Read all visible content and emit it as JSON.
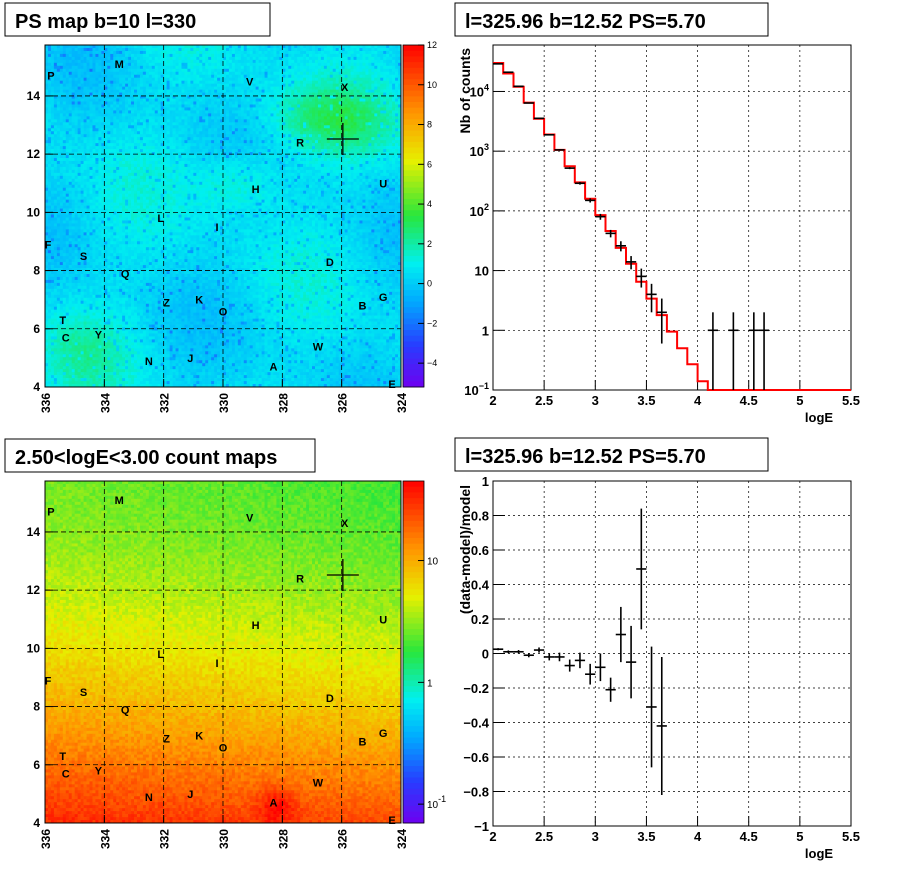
{
  "chart_data": [
    {
      "type": "heatmap",
      "title": "PS map b=10 l=330",
      "x_ticks": [
        "336",
        "334",
        "332",
        "330",
        "328",
        "326",
        "324"
      ],
      "xlim": [
        336,
        324
      ],
      "y_ticks": [
        "4",
        "6",
        "8",
        "10",
        "12",
        "14"
      ],
      "ylim": [
        4,
        15.75
      ],
      "colorbar": {
        "scale": "linear",
        "range": [
          -5.2,
          12
        ],
        "ticks": [
          "12",
          "10",
          "8",
          "6",
          "4",
          "2",
          "0",
          "−2",
          "−4"
        ],
        "tick_values": [
          12,
          10,
          8,
          6,
          4,
          2,
          0,
          -2,
          -4
        ]
      },
      "crosshair": {
        "l": 325.96,
        "b": 12.52
      },
      "source_labels": [
        {
          "label": "M",
          "l": 333.5,
          "b": 15.1
        },
        {
          "label": "P",
          "l": 335.8,
          "b": 14.7
        },
        {
          "label": "V",
          "l": 329.1,
          "b": 14.5
        },
        {
          "label": "X",
          "l": 325.9,
          "b": 14.3
        },
        {
          "label": "R",
          "l": 327.4,
          "b": 12.4
        },
        {
          "label": "H",
          "l": 328.9,
          "b": 10.8
        },
        {
          "label": "U",
          "l": 324.6,
          "b": 11.0
        },
        {
          "label": "L",
          "l": 332.1,
          "b": 9.8
        },
        {
          "label": "I",
          "l": 330.2,
          "b": 9.5
        },
        {
          "label": "F",
          "l": 335.9,
          "b": 8.9
        },
        {
          "label": "S",
          "l": 334.7,
          "b": 8.5
        },
        {
          "label": "D",
          "l": 326.4,
          "b": 8.3
        },
        {
          "label": "Q",
          "l": 333.3,
          "b": 7.9
        },
        {
          "label": "K",
          "l": 330.8,
          "b": 7.0
        },
        {
          "label": "Z",
          "l": 331.9,
          "b": 6.9
        },
        {
          "label": "O",
          "l": 330.0,
          "b": 6.6
        },
        {
          "label": "B",
          "l": 325.3,
          "b": 6.8
        },
        {
          "label": "G",
          "l": 324.6,
          "b": 7.1
        },
        {
          "label": "T",
          "l": 335.4,
          "b": 6.3
        },
        {
          "label": "C",
          "l": 335.3,
          "b": 5.7
        },
        {
          "label": "Y",
          "l": 334.2,
          "b": 5.8
        },
        {
          "label": "W",
          "l": 326.8,
          "b": 5.4
        },
        {
          "label": "N",
          "l": 332.5,
          "b": 4.9
        },
        {
          "label": "J",
          "l": 331.1,
          "b": 5.0
        },
        {
          "label": "A",
          "l": 328.3,
          "b": 4.7
        },
        {
          "label": "E",
          "l": 324.3,
          "b": 4.1
        }
      ]
    },
    {
      "type": "line",
      "title": "l=325.96 b=12.52 PS=5.70",
      "xlabel": "logE",
      "ylabel": "Nb of counts",
      "xlim": [
        2,
        5.5
      ],
      "ylim": [
        0.1,
        60000
      ],
      "yscale": "log",
      "x_ticks": [
        "2",
        "2.5",
        "3",
        "3.5",
        "4",
        "4.5",
        "5",
        "5.5"
      ],
      "y_ticks": [
        {
          "v": 0.1,
          "base": "10",
          "exp": "−1"
        },
        {
          "v": 1,
          "base": "1",
          "exp": ""
        },
        {
          "v": 10,
          "base": "10",
          "exp": ""
        },
        {
          "v": 100,
          "base": "10",
          "exp": "2"
        },
        {
          "v": 1000,
          "base": "10",
          "exp": "3"
        },
        {
          "v": 10000,
          "base": "10",
          "exp": "4"
        }
      ],
      "grid": true,
      "series": [
        {
          "kind": "model-histogram",
          "color": "#ff0000",
          "edges": [
            2.0,
            2.1,
            2.2,
            2.3,
            2.4,
            2.5,
            2.6,
            2.7,
            2.8,
            2.9,
            3.0,
            3.1,
            3.2,
            3.3,
            3.4,
            3.5,
            3.6,
            3.7,
            3.8,
            3.9,
            4.0,
            4.1,
            4.2,
            4.3,
            4.4,
            4.5,
            4.6,
            4.7,
            4.8,
            4.9,
            5.0,
            5.1,
            5.2,
            5.3,
            5.4,
            5.5
          ],
          "values": [
            30000,
            20000,
            12000,
            6500,
            3500,
            1900,
            1050,
            560,
            300,
            160,
            85,
            46,
            24,
            13,
            6.5,
            3.4,
            1.8,
            0.95,
            0.5,
            0.27,
            0.14,
            0.1,
            0.1,
            0.1,
            0.1,
            0.1,
            0.1,
            0.1,
            0.1,
            0.1,
            0.1,
            0.1,
            0.1,
            0.1,
            0.1
          ]
        },
        {
          "kind": "data-points",
          "color": "#000000",
          "points": [
            {
              "x": 2.05,
              "y": 29000,
              "xerr": 0.05,
              "lo": 28800,
              "hi": 29200
            },
            {
              "x": 2.15,
              "y": 21000,
              "xerr": 0.05,
              "lo": 20800,
              "hi": 21200
            },
            {
              "x": 2.25,
              "y": 12200,
              "xerr": 0.05,
              "lo": 12000,
              "hi": 12400
            },
            {
              "x": 2.35,
              "y": 6400,
              "xerr": 0.05,
              "lo": 6300,
              "hi": 6500
            },
            {
              "x": 2.45,
              "y": 3550,
              "xerr": 0.05,
              "lo": 3490,
              "hi": 3610
            },
            {
              "x": 2.55,
              "y": 1880,
              "xerr": 0.05,
              "lo": 1840,
              "hi": 1920
            },
            {
              "x": 2.65,
              "y": 1050,
              "xerr": 0.05,
              "lo": 1020,
              "hi": 1080
            },
            {
              "x": 2.75,
              "y": 520,
              "xerr": 0.05,
              "lo": 500,
              "hi": 540
            },
            {
              "x": 2.85,
              "y": 290,
              "xerr": 0.05,
              "lo": 275,
              "hi": 305
            },
            {
              "x": 2.95,
              "y": 150,
              "xerr": 0.05,
              "lo": 138,
              "hi": 162
            },
            {
              "x": 3.05,
              "y": 80,
              "xerr": 0.05,
              "lo": 71,
              "hi": 89
            },
            {
              "x": 3.15,
              "y": 42,
              "xerr": 0.05,
              "lo": 36,
              "hi": 48
            },
            {
              "x": 3.25,
              "y": 26,
              "xerr": 0.05,
              "lo": 21,
              "hi": 31
            },
            {
              "x": 3.35,
              "y": 14,
              "xerr": 0.05,
              "lo": 10.5,
              "hi": 17.5
            },
            {
              "x": 3.45,
              "y": 8,
              "xerr": 0.05,
              "lo": 5.2,
              "hi": 10.8
            },
            {
              "x": 3.55,
              "y": 4,
              "xerr": 0.05,
              "lo": 2.0,
              "hi": 6.0
            },
            {
              "x": 3.65,
              "y": 2,
              "xerr": 0.05,
              "lo": 0.6,
              "hi": 3.4
            },
            {
              "x": 4.15,
              "y": 1,
              "xerr": 0.05,
              "lo": 0.1,
              "hi": 2.0
            },
            {
              "x": 4.35,
              "y": 1,
              "xerr": 0.05,
              "lo": 0.1,
              "hi": 2.0
            },
            {
              "x": 4.55,
              "y": 1,
              "xerr": 0.05,
              "lo": 0.1,
              "hi": 2.0
            },
            {
              "x": 4.65,
              "y": 1,
              "xerr": 0.05,
              "lo": 0.1,
              "hi": 2.0
            }
          ]
        }
      ]
    },
    {
      "type": "heatmap",
      "title": "2.50<logE<3.00 count maps",
      "x_ticks": [
        "336",
        "334",
        "332",
        "330",
        "328",
        "326",
        "324"
      ],
      "xlim": [
        336,
        324
      ],
      "y_ticks": [
        "4",
        "6",
        "8",
        "10",
        "12",
        "14"
      ],
      "ylim": [
        4,
        15.75
      ],
      "colorbar": {
        "scale": "log",
        "range": [
          0.07,
          45
        ],
        "ticks": [
          {
            "v": 10,
            "base": "10",
            "exp": ""
          },
          {
            "v": 1,
            "base": "1",
            "exp": ""
          },
          {
            "v": 0.1,
            "base": "10",
            "exp": "-1"
          }
        ]
      },
      "crosshair": {
        "l": 325.96,
        "b": 12.52
      },
      "source_labels": [
        {
          "label": "M",
          "l": 333.5,
          "b": 15.1
        },
        {
          "label": "P",
          "l": 335.8,
          "b": 14.7
        },
        {
          "label": "V",
          "l": 329.1,
          "b": 14.5
        },
        {
          "label": "X",
          "l": 325.9,
          "b": 14.3
        },
        {
          "label": "R",
          "l": 327.4,
          "b": 12.4
        },
        {
          "label": "H",
          "l": 328.9,
          "b": 10.8
        },
        {
          "label": "U",
          "l": 324.6,
          "b": 11.0
        },
        {
          "label": "L",
          "l": 332.1,
          "b": 9.8
        },
        {
          "label": "I",
          "l": 330.2,
          "b": 9.5
        },
        {
          "label": "F",
          "l": 335.9,
          "b": 8.9
        },
        {
          "label": "S",
          "l": 334.7,
          "b": 8.5
        },
        {
          "label": "D",
          "l": 326.4,
          "b": 8.3
        },
        {
          "label": "Q",
          "l": 333.3,
          "b": 7.9
        },
        {
          "label": "K",
          "l": 330.8,
          "b": 7.0
        },
        {
          "label": "Z",
          "l": 331.9,
          "b": 6.9
        },
        {
          "label": "O",
          "l": 330.0,
          "b": 6.6
        },
        {
          "label": "B",
          "l": 325.3,
          "b": 6.8
        },
        {
          "label": "G",
          "l": 324.6,
          "b": 7.1
        },
        {
          "label": "T",
          "l": 335.4,
          "b": 6.3
        },
        {
          "label": "C",
          "l": 335.3,
          "b": 5.7
        },
        {
          "label": "Y",
          "l": 334.2,
          "b": 5.8
        },
        {
          "label": "W",
          "l": 326.8,
          "b": 5.4
        },
        {
          "label": "N",
          "l": 332.5,
          "b": 4.9
        },
        {
          "label": "J",
          "l": 331.1,
          "b": 5.0
        },
        {
          "label": "A",
          "l": 328.3,
          "b": 4.7
        },
        {
          "label": "E",
          "l": 324.3,
          "b": 4.1
        }
      ]
    },
    {
      "type": "scatter",
      "title": "l=325.96 b=12.52 PS=5.70",
      "xlabel": "logE",
      "ylabel": "(data-model)/model",
      "xlim": [
        2,
        5.5
      ],
      "ylim": [
        -1,
        1
      ],
      "x_ticks": [
        "2",
        "2.5",
        "3",
        "3.5",
        "4",
        "4.5",
        "5",
        "5.5"
      ],
      "y_ticks": [
        "−1",
        "−0.8",
        "−0.6",
        "−0.4",
        "−0.2",
        "0",
        "0.2",
        "0.4",
        "0.6",
        "0.8",
        "1"
      ],
      "grid": true,
      "points": [
        {
          "x": 2.05,
          "y": 0.025,
          "xerr": 0.05,
          "yerr": 0.006
        },
        {
          "x": 2.15,
          "y": 0.01,
          "xerr": 0.05,
          "yerr": 0.008
        },
        {
          "x": 2.25,
          "y": 0.01,
          "xerr": 0.05,
          "yerr": 0.01
        },
        {
          "x": 2.35,
          "y": -0.01,
          "xerr": 0.05,
          "yerr": 0.012
        },
        {
          "x": 2.45,
          "y": 0.02,
          "xerr": 0.05,
          "yerr": 0.015
        },
        {
          "x": 2.55,
          "y": -0.02,
          "xerr": 0.05,
          "yerr": 0.02
        },
        {
          "x": 2.65,
          "y": -0.02,
          "xerr": 0.05,
          "yerr": 0.025
        },
        {
          "x": 2.75,
          "y": -0.07,
          "xerr": 0.05,
          "yerr": 0.035
        },
        {
          "x": 2.85,
          "y": -0.04,
          "xerr": 0.05,
          "yerr": 0.045
        },
        {
          "x": 2.95,
          "y": -0.12,
          "xerr": 0.05,
          "yerr": 0.06
        },
        {
          "x": 3.05,
          "y": -0.08,
          "xerr": 0.05,
          "yerr": 0.08
        },
        {
          "x": 3.15,
          "y": -0.21,
          "xerr": 0.05,
          "yerr": 0.07
        },
        {
          "x": 3.25,
          "y": 0.11,
          "xerr": 0.05,
          "yerr": 0.16
        },
        {
          "x": 3.35,
          "y": -0.05,
          "xerr": 0.05,
          "yerr": 0.21
        },
        {
          "x": 3.45,
          "y": 0.49,
          "xerr": 0.05,
          "yerr": 0.35
        },
        {
          "x": 3.55,
          "y": -0.31,
          "xerr": 0.05,
          "yerr": 0.35
        },
        {
          "x": 3.65,
          "y": -0.42,
          "xerr": 0.05,
          "yerr": 0.4
        }
      ]
    }
  ]
}
